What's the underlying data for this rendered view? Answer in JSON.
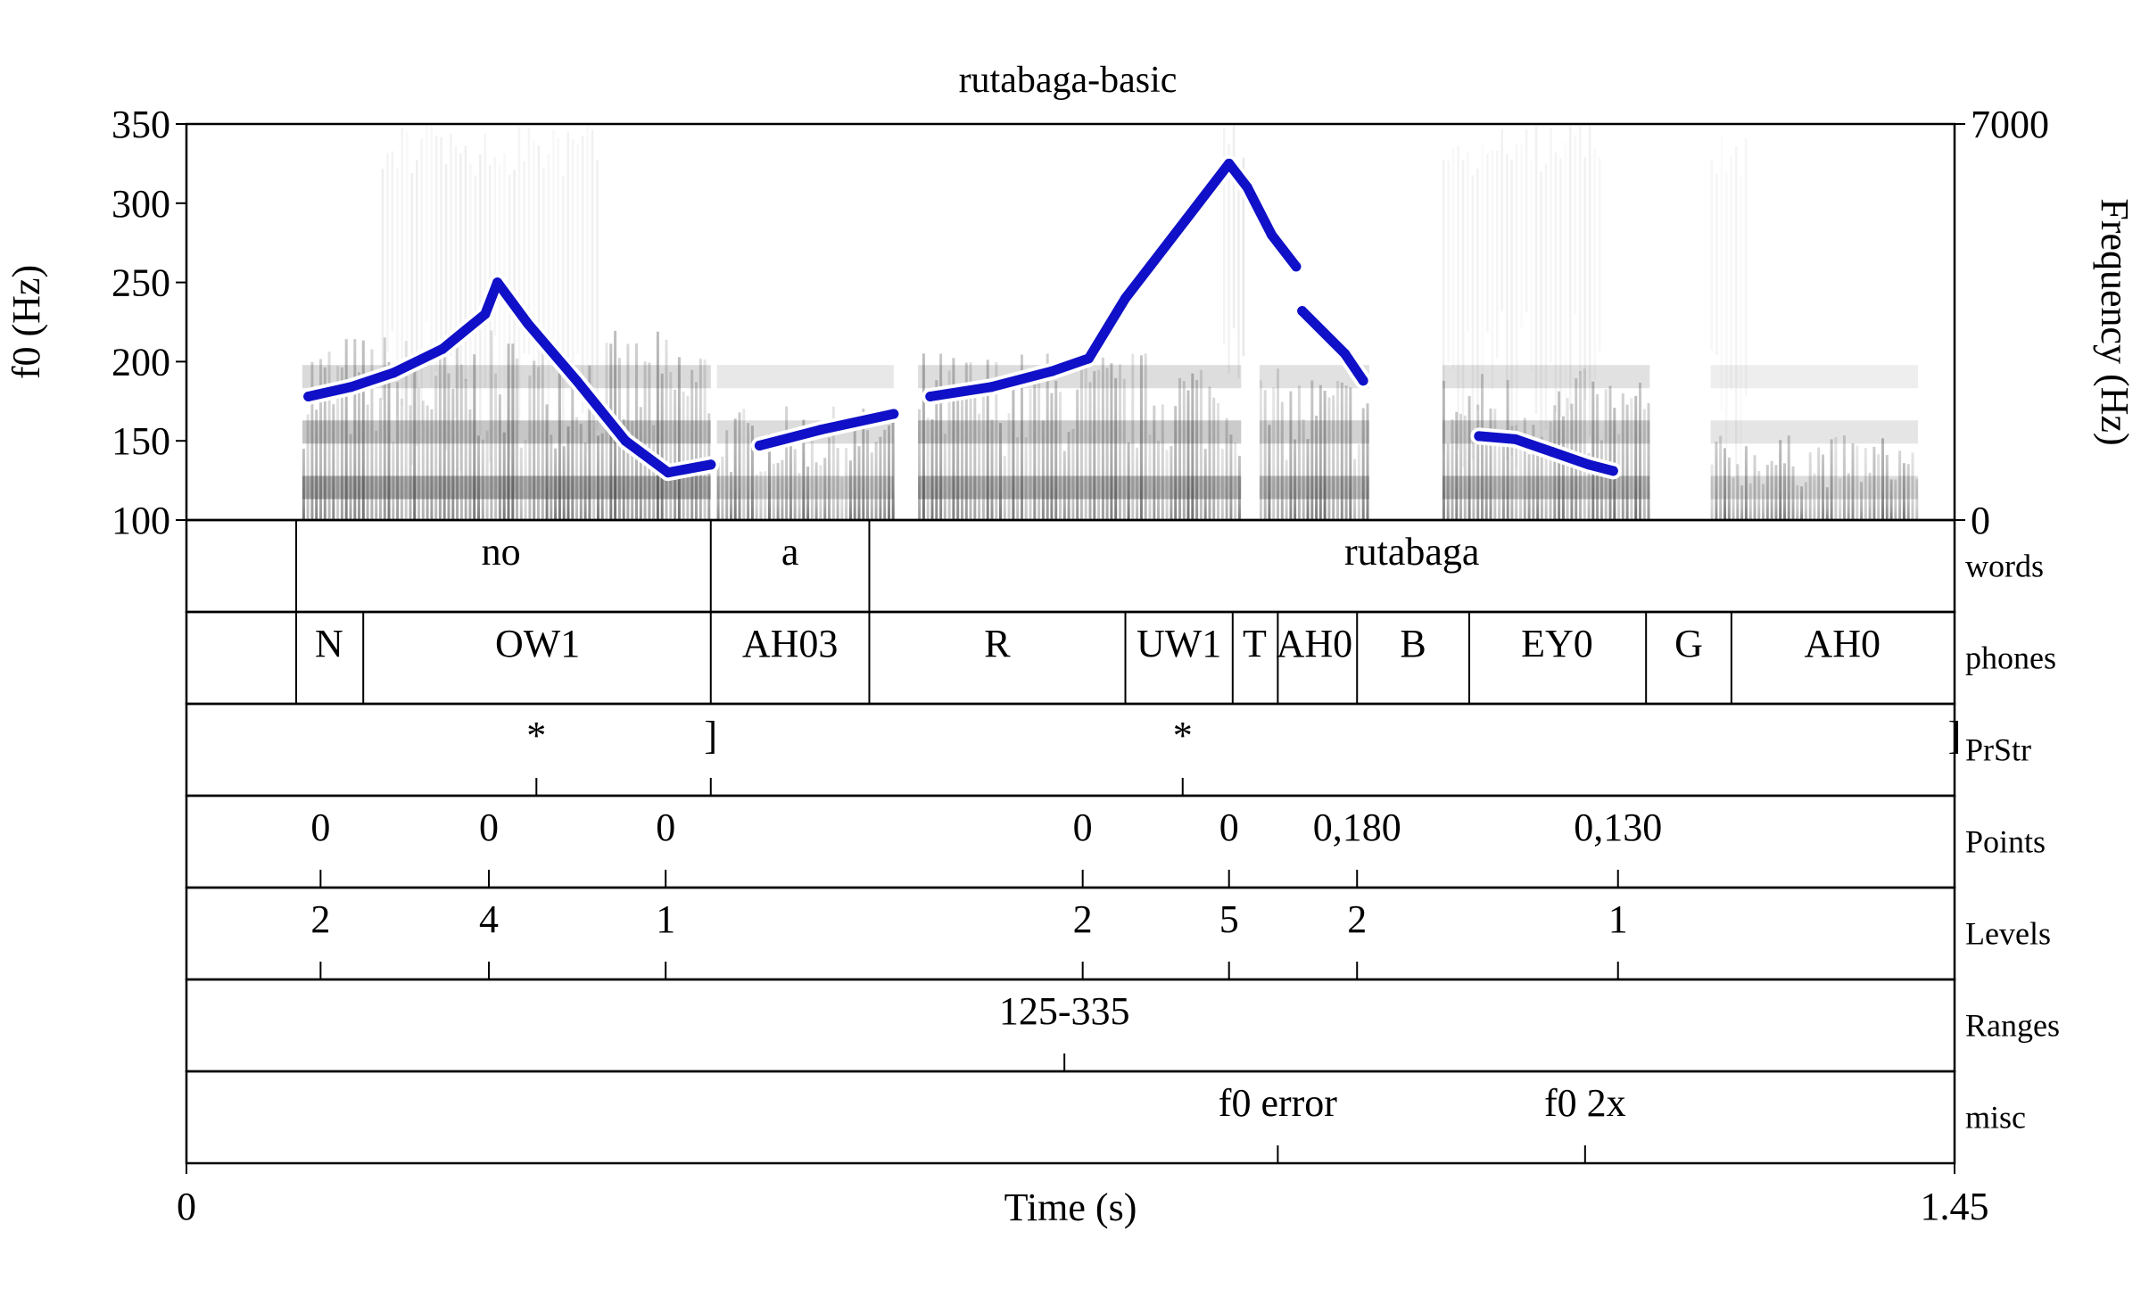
{
  "title": "rutabaga-basic",
  "axes": {
    "y_left_label": "f0 (Hz)",
    "y_right_label": "Frequency (Hz)",
    "x_label": "Time (s)",
    "x_ticks": [
      "0",
      "1.45"
    ],
    "y_left_ticks": [
      "350",
      "300",
      "250",
      "200",
      "150",
      "100"
    ],
    "y_right_ticks": [
      "7000",
      "0"
    ]
  },
  "chart_data": {
    "type": "line",
    "title": "rutabaga-basic",
    "xlabel": "Time (s)",
    "ylabel": "f0 (Hz)",
    "y2label": "Frequency (Hz)",
    "xlim": [
      0,
      1.45
    ],
    "ylim": [
      100,
      350
    ],
    "y2lim": [
      0,
      7000
    ],
    "series": [
      {
        "color": "#1010c8",
        "segments": [
          [
            [
              0.1,
              178
            ],
            [
              0.135,
              184
            ],
            [
              0.17,
              193
            ],
            [
              0.21,
              208
            ],
            [
              0.245,
              230
            ],
            [
              0.255,
              250
            ],
            [
              0.28,
              224
            ],
            [
              0.32,
              188
            ],
            [
              0.36,
              150
            ],
            [
              0.395,
              130
            ],
            [
              0.43,
              135
            ]
          ],
          [
            [
              0.47,
              147
            ],
            [
              0.52,
              157
            ],
            [
              0.58,
              167
            ]
          ],
          [
            [
              0.61,
              178
            ],
            [
              0.66,
              184
            ],
            [
              0.71,
              194
            ],
            [
              0.74,
              202
            ],
            [
              0.77,
              240
            ],
            [
              0.82,
              290
            ],
            [
              0.855,
              325
            ],
            [
              0.87,
              310
            ],
            [
              0.89,
              280
            ],
            [
              0.91,
              260
            ]
          ],
          [
            [
              0.915,
              232
            ],
            [
              0.95,
              205
            ],
            [
              0.965,
              188
            ]
          ],
          [
            [
              1.06,
              153
            ],
            [
              1.09,
              151
            ],
            [
              1.12,
              143
            ],
            [
              1.15,
              135
            ],
            [
              1.17,
              131
            ]
          ]
        ]
      }
    ],
    "tiers": [
      {
        "name": "words",
        "type": "interval",
        "boundaries": [
          0.09,
          0.43,
          0.56,
          1.45
        ],
        "labels": [
          {
            "t": 0.258,
            "text": "no"
          },
          {
            "t": 0.495,
            "text": "a"
          },
          {
            "t": 1.005,
            "text": "rutabaga"
          }
        ]
      },
      {
        "name": "phones",
        "type": "interval",
        "boundaries": [
          0.09,
          0.145,
          0.43,
          0.56,
          0.77,
          0.858,
          0.895,
          0.96,
          1.052,
          1.197,
          1.267,
          1.45
        ],
        "labels": [
          {
            "t": 0.117,
            "text": "N"
          },
          {
            "t": 0.288,
            "text": "OW1"
          },
          {
            "t": 0.495,
            "text": "AH03"
          },
          {
            "t": 0.665,
            "text": "R"
          },
          {
            "t": 0.814,
            "text": "UW1"
          },
          {
            "t": 0.876,
            "text": "T"
          },
          {
            "t": 0.925,
            "text": "AH0"
          },
          {
            "t": 1.006,
            "text": "B"
          },
          {
            "t": 1.124,
            "text": "EY0"
          },
          {
            "t": 1.232,
            "text": "G"
          },
          {
            "t": 1.358,
            "text": "AH0"
          }
        ]
      },
      {
        "name": "PrStr",
        "type": "point",
        "points": [
          {
            "t": 0.287,
            "text": "*"
          },
          {
            "t": 0.43,
            "text": "]"
          },
          {
            "t": 0.817,
            "text": "*"
          },
          {
            "t": 1.45,
            "text": "]"
          }
        ]
      },
      {
        "name": "Points",
        "type": "point",
        "points": [
          {
            "t": 0.11,
            "text": "0"
          },
          {
            "t": 0.248,
            "text": "0"
          },
          {
            "t": 0.393,
            "text": "0"
          },
          {
            "t": 0.735,
            "text": "0"
          },
          {
            "t": 0.855,
            "text": "0"
          },
          {
            "t": 0.96,
            "text": "0,180"
          },
          {
            "t": 1.174,
            "text": "0,130"
          }
        ]
      },
      {
        "name": "Levels",
        "type": "point",
        "points": [
          {
            "t": 0.11,
            "text": "2"
          },
          {
            "t": 0.248,
            "text": "4"
          },
          {
            "t": 0.393,
            "text": "1"
          },
          {
            "t": 0.735,
            "text": "2"
          },
          {
            "t": 0.855,
            "text": "5"
          },
          {
            "t": 0.96,
            "text": "2"
          },
          {
            "t": 1.174,
            "text": "1"
          }
        ]
      },
      {
        "name": "Ranges",
        "type": "point",
        "points": [
          {
            "t": 0.72,
            "text": "125-335"
          }
        ]
      },
      {
        "name": "misc",
        "type": "point",
        "points": [
          {
            "t": 0.895,
            "text": "f0 error"
          },
          {
            "t": 1.147,
            "text": "f0 2x"
          }
        ]
      }
    ]
  }
}
